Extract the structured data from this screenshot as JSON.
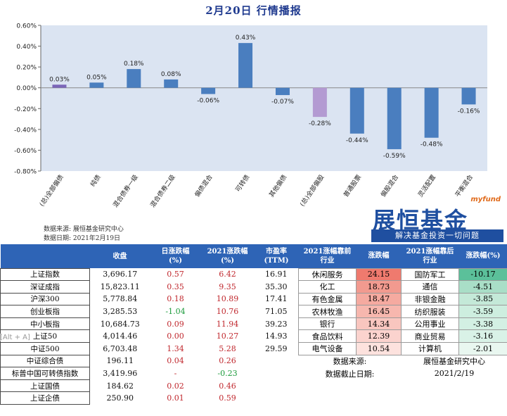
{
  "title": "2月20日  行情播报",
  "chart_data": {
    "type": "bar",
    "categories": [
      "(总)全部偏债",
      "纯债",
      "混合债券一级",
      "混合债券二级",
      "偏债混合",
      "可转债",
      "其他偏债",
      "(总)全部偏股",
      "普通股票",
      "偏股混合",
      "灵活配置",
      "平衡混合"
    ],
    "values": [
      0.03,
      0.05,
      0.18,
      0.08,
      -0.06,
      0.43,
      -0.07,
      -0.28,
      -0.44,
      -0.59,
      -0.48,
      -0.16
    ],
    "value_labels": [
      "0.03%",
      "0.05%",
      "0.18%",
      "0.08%",
      "-0.06%",
      "0.43%",
      "-0.07%",
      "-0.28%",
      "-0.44%",
      "-0.59%",
      "-0.48%",
      "-0.16%"
    ],
    "highlight": [
      0,
      7
    ],
    "ylim": [
      -0.8,
      0.6
    ],
    "yticks": [
      0.6,
      0.4,
      0.2,
      0.0,
      -0.2,
      -0.4,
      -0.6,
      -0.8
    ],
    "ytick_labels": [
      "0.60%",
      "0.40%",
      "0.20%",
      "0.00%",
      "-0.20%",
      "-0.40%",
      "-0.60%",
      "-0.80%"
    ],
    "colors": {
      "bar": "#4a7ebf",
      "highlight_pos": "#7b66b8",
      "highlight_neg": "#b39ad2",
      "plot_bg": "#dbe4f2"
    }
  },
  "source": {
    "line1": "数据来源:  展恒基金研究中心",
    "line2": "数据日期:  2021年2月19日"
  },
  "logo": {
    "myfund": "myfund",
    "brand": "展恒基金",
    "slogan": "解决基金投资一切问题"
  },
  "table": {
    "headers": {
      "idx": "",
      "close": "收盘",
      "daily": "日涨跌幅\n(%)",
      "ytd": "2021涨跌幅\n(%)",
      "pe": "市盈率\n(TTM)",
      "top_ind": "2021涨幅靠前\n行业",
      "top_chg": "涨跌幅",
      "bot_ind": "2021涨幅靠后\n行业",
      "bot_chg": "涨跌幅(%)"
    },
    "rows": [
      {
        "name": "上证指数",
        "close": "3,696.17",
        "daily": "0.57",
        "ytd": "6.42",
        "pe": "16.91",
        "daily_c": "red",
        "ytd_c": "red",
        "top_ind": "休闲服务",
        "top_chg": "24.15",
        "bot_ind": "国防军工",
        "bot_chg": "-10.17"
      },
      {
        "name": "深证成指",
        "close": "15,823.11",
        "daily": "0.35",
        "ytd": "9.35",
        "pe": "35.30",
        "daily_c": "red",
        "ytd_c": "red",
        "top_ind": "化工",
        "top_chg": "18.73",
        "bot_ind": "通信",
        "bot_chg": "-4.51"
      },
      {
        "name": "沪深300",
        "close": "5,778.84",
        "daily": "0.18",
        "ytd": "10.89",
        "pe": "17.41",
        "daily_c": "red",
        "ytd_c": "red",
        "top_ind": "有色金属",
        "top_chg": "18.47",
        "bot_ind": "非银金融",
        "bot_chg": "-3.85"
      },
      {
        "name": "创业板指",
        "close": "3,285.53",
        "daily": "-1.04",
        "ytd": "10.76",
        "pe": "71.05",
        "daily_c": "green",
        "ytd_c": "red",
        "top_ind": "农林牧渔",
        "top_chg": "16.45",
        "bot_ind": "纺织服装",
        "bot_chg": "-3.59"
      },
      {
        "name": "中小板指",
        "close": "10,684.73",
        "daily": "0.09",
        "ytd": "11.94",
        "pe": "39.23",
        "daily_c": "red",
        "ytd_c": "red",
        "top_ind": "银行",
        "top_chg": "14.34",
        "bot_ind": "公用事业",
        "bot_chg": "-3.38"
      },
      {
        "name": "上证50",
        "close": "4,014.46",
        "daily": "0.00",
        "ytd": "10.27",
        "pe": "14.93",
        "daily_c": "red",
        "ytd_c": "red",
        "top_ind": "食品饮料",
        "top_chg": "12.39",
        "bot_ind": "商业贸易",
        "bot_chg": "-3.16"
      },
      {
        "name": "中证500",
        "close": "6,703.48",
        "daily": "1.34",
        "ytd": "5.28",
        "pe": "29.59",
        "daily_c": "red",
        "ytd_c": "red",
        "top_ind": "电气设备",
        "top_chg": "10.54",
        "bot_ind": "计算机",
        "bot_chg": "-2.01"
      },
      {
        "name": "中证综合债",
        "close": "196.11",
        "daily": "0.04",
        "ytd": "0.26",
        "pe": "",
        "daily_c": "red",
        "ytd_c": "red",
        "note_a": "数据来源:",
        "note_b": "展恒基金研究中心"
      },
      {
        "name": "标普中国可转债指数",
        "close": "3,419.96",
        "daily": "-",
        "ytd": "-0.23",
        "pe": "",
        "daily_c": "red",
        "ytd_c": "green",
        "note_a": "数据截止日期:",
        "note_b": "2021/2/19"
      },
      {
        "name": "上证国债",
        "close": "184.62",
        "daily": "0.02",
        "ytd": "0.46",
        "pe": "",
        "daily_c": "red",
        "ytd_c": "red"
      },
      {
        "name": "上证企债",
        "close": "250.90",
        "daily": "0.01",
        "ytd": "0.59",
        "pe": "",
        "daily_c": "red",
        "ytd_c": "red"
      }
    ]
  },
  "overlay_text": "[Alt + A]"
}
